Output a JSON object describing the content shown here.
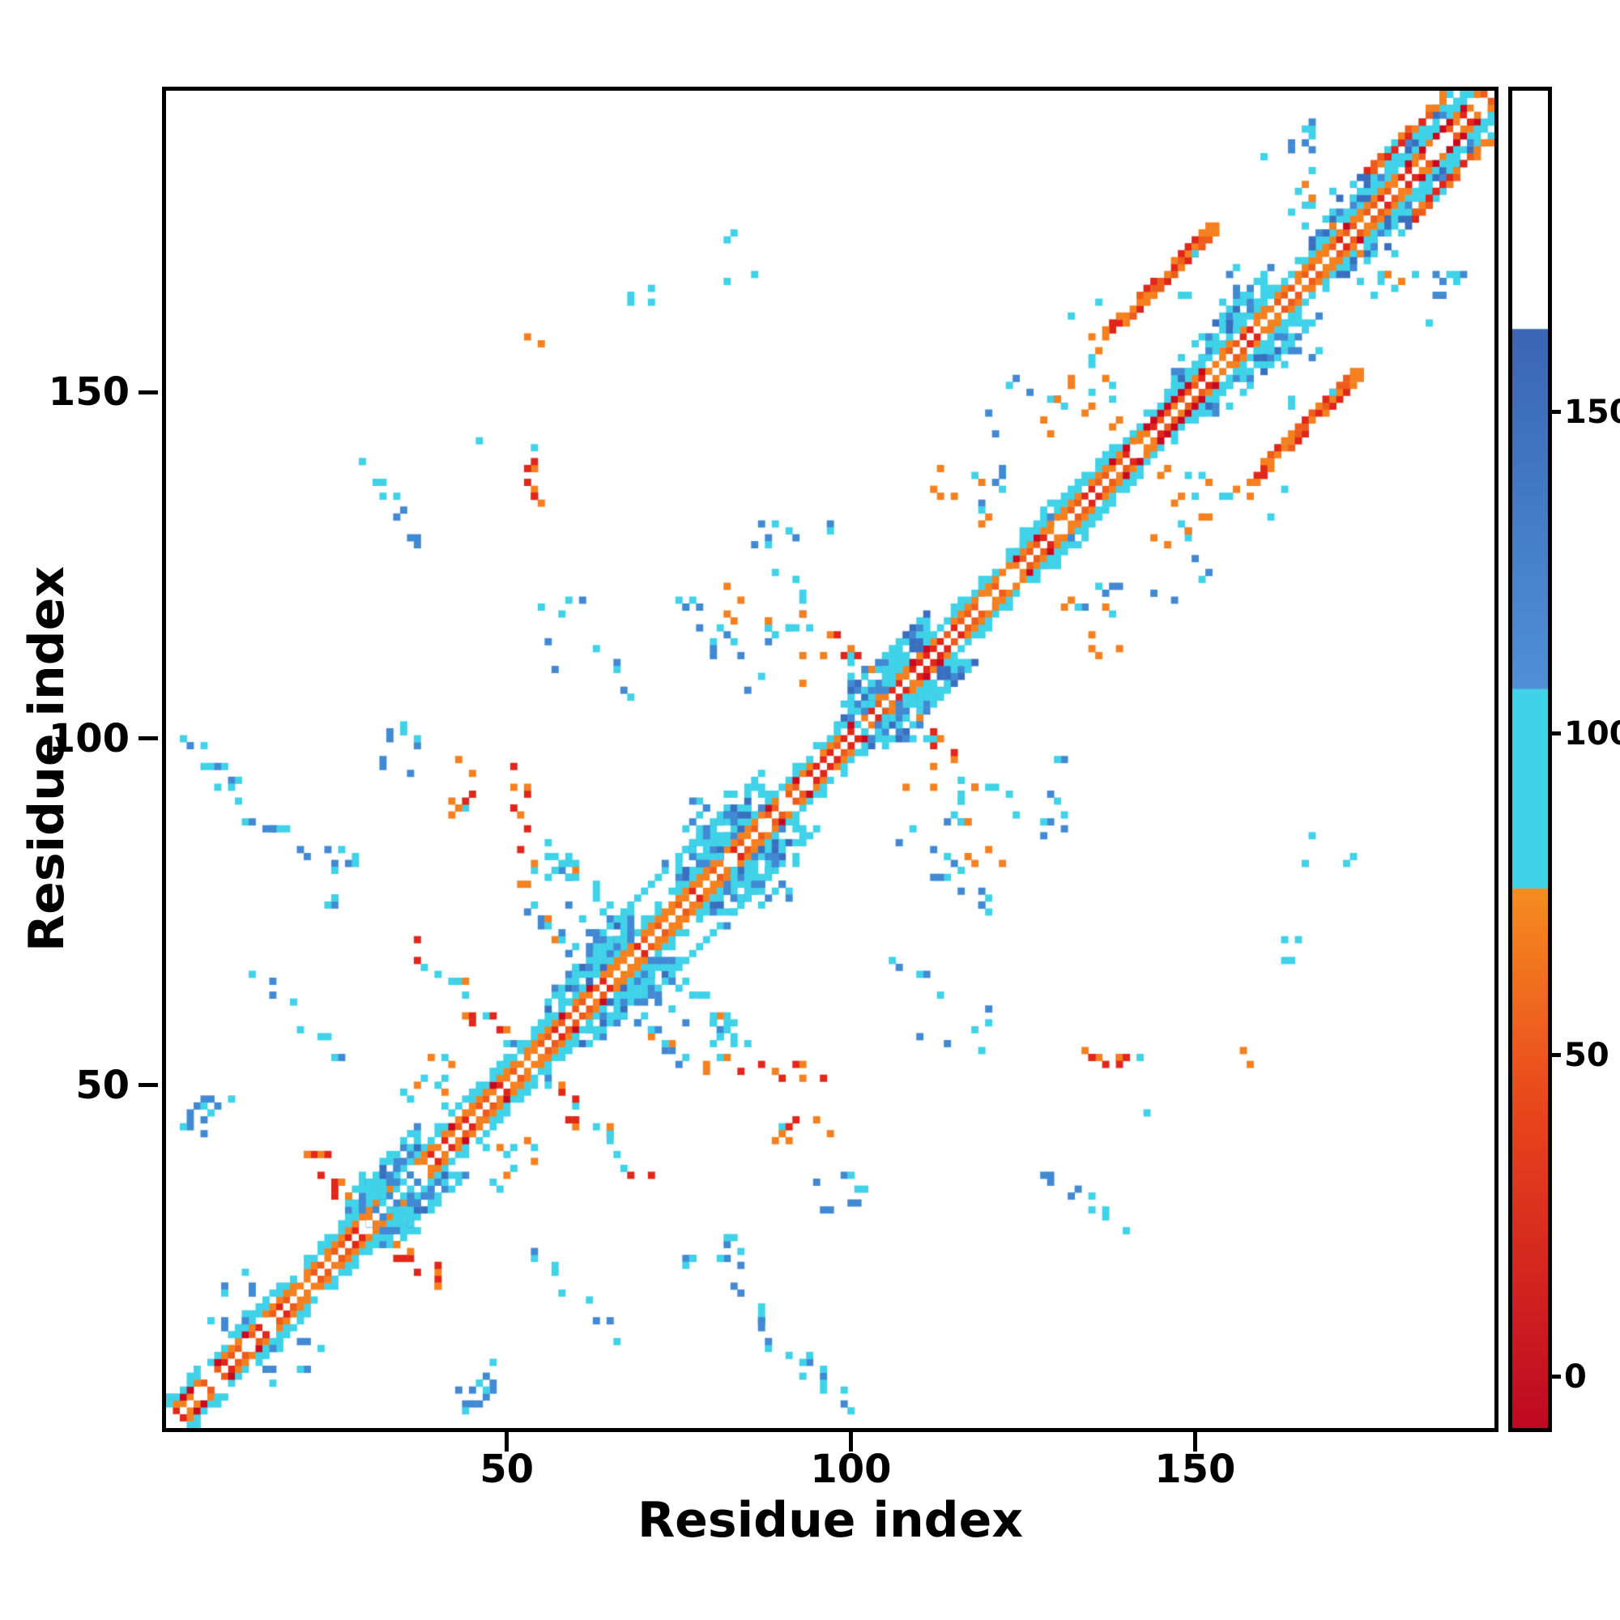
{
  "chart_data": {
    "type": "heatmap",
    "title": "",
    "xlabel": "Residue index",
    "ylabel": "Residue index",
    "x_range": [
      1,
      193
    ],
    "y_range": [
      1,
      193
    ],
    "x_ticks": [
      "50",
      "100",
      "150"
    ],
    "x_tick_values": [
      50,
      100,
      150
    ],
    "y_ticks": [
      "50",
      "100",
      "150"
    ],
    "y_tick_values": [
      50,
      100,
      150
    ],
    "grid": false,
    "background": "#ffffff",
    "legend_position": "colorbar-right",
    "palette": {
      "red": "#e2261a",
      "red2": "#c9081f",
      "orange": "#f5801f",
      "orange2": "#ee5c1c",
      "cyan": "#3fd2e8",
      "blue": "#4289d4",
      "blue2": "#3a6fc0",
      "white": "#ffffff",
      "axis": "#000000"
    },
    "colorbar": {
      "range": [
        -8,
        200
      ],
      "ticks": [
        "0",
        "50",
        "100",
        "150"
      ],
      "tick_values": [
        0,
        50,
        100,
        150
      ],
      "segments": [
        {
          "from": -8,
          "to": 40,
          "from_color": "#c00822",
          "to_color": "#e8431c"
        },
        {
          "from": 40,
          "to": 76,
          "from_color": "#e8431c",
          "to_color": "#f68d20"
        },
        {
          "from": 76,
          "to": 107,
          "from_color": "#3fd2e8",
          "to_color": "#3fd2e8"
        },
        {
          "from": 107,
          "to": 163,
          "from_color": "#4f90d8",
          "to_color": "#3a66b4"
        },
        {
          "from": 163,
          "to": 200,
          "from_color": "#ffffff",
          "to_color": "#ffffff"
        }
      ]
    },
    "contact_map": {
      "n_residues": 193,
      "seed": 7,
      "diagonal_band": {
        "inner_offsets": [
          1,
          2
        ],
        "outer_offsets": [
          3,
          4
        ],
        "inner_gap_p": 0.1,
        "outer_gap_p": 0.2,
        "outer_gap_p2": 0.45,
        "red_p": 0.18,
        "red_rich_p": 0.5,
        "blue_speck_p": 0.06,
        "inner_colors": [
          "orange",
          "orange2",
          "red"
        ],
        "outer_color": "cyan"
      },
      "red_segments": [
        [
          1,
          12
        ],
        [
          95,
          112
        ],
        [
          143,
          151
        ],
        [
          179,
          190
        ]
      ],
      "bulges": [
        {
          "center": 32,
          "length": 10,
          "half_width": 7,
          "blue_p": 0.3
        },
        {
          "center": 62,
          "length": 12,
          "half_width": 7,
          "blue_p": 0.3
        },
        {
          "center": 81,
          "length": 12,
          "half_width": 8,
          "blue_p": 0.25
        },
        {
          "center": 105,
          "length": 12,
          "half_width": 7,
          "blue_p": 0.3
        },
        {
          "center": 126,
          "length": 6,
          "half_width": 5,
          "blue_p": 0.15
        },
        {
          "center": 154,
          "length": 14,
          "half_width": 7,
          "blue_p": 0.3
        },
        {
          "center": 173,
          "length": 12,
          "half_width": 7,
          "blue_p": 0.25
        },
        {
          "center": 186,
          "length": 10,
          "half_width": 6,
          "blue_p": 0.2
        }
      ],
      "paradiags": [
        {
          "from": 62,
          "to": 80,
          "offset": 8,
          "colors": [
            "cyan",
            "cyan",
            "blue"
          ],
          "p": 0.8
        },
        {
          "from": 174,
          "to": 189,
          "offset": 6,
          "colors": [
            "orange",
            "orange2",
            "red"
          ],
          "p": 0.85
        }
      ],
      "diag_streaks": [
        {
          "x0": 138,
          "y0": 158,
          "len": 15,
          "thick": 3,
          "colors": [
            "red",
            "orange",
            "orange2"
          ],
          "p": 0.8
        }
      ],
      "clusters": [
        {
          "x": [
            3,
            12
          ],
          "y": [
            40,
            52
          ],
          "n": 9,
          "colors": [
            "cyan",
            "blue"
          ],
          "pattern": "scatter"
        },
        {
          "x": [
            3,
            16
          ],
          "y": [
            86,
            100
          ],
          "n": 13,
          "colors": [
            "blue",
            "cyan"
          ],
          "pattern": "antidiag"
        },
        {
          "x": [
            17,
            23
          ],
          "y": [
            82,
            90
          ],
          "n": 3,
          "colors": [
            "blue",
            "cyan"
          ],
          "pattern": "scatter"
        },
        {
          "x": [
            7,
            15
          ],
          "y": [
            14,
            23
          ],
          "n": 7,
          "colors": [
            "cyan",
            "blue"
          ],
          "pattern": "scatter"
        },
        {
          "x": [
            20,
            27
          ],
          "y": [
            33,
            41
          ],
          "n": 8,
          "colors": [
            "orange",
            "red"
          ],
          "pattern": "antidiag"
        },
        {
          "x": [
            29,
            37
          ],
          "y": [
            30,
            38
          ],
          "n": 12,
          "colors": [
            "blue",
            "cyan"
          ],
          "pattern": "blob"
        },
        {
          "x": [
            33,
            42
          ],
          "y": [
            46,
            56
          ],
          "n": 8,
          "colors": [
            "cyan",
            "orange"
          ],
          "pattern": "scatter"
        },
        {
          "x": [
            36,
            50
          ],
          "y": [
            56,
            70
          ],
          "n": 12,
          "colors": [
            "orange",
            "red",
            "cyan"
          ],
          "pattern": "antidiag"
        },
        {
          "x": [
            14,
            24
          ],
          "y": [
            55,
            67
          ],
          "n": 7,
          "colors": [
            "cyan",
            "blue"
          ],
          "pattern": "antidiag"
        },
        {
          "x": [
            20,
            30
          ],
          "y": [
            74,
            86
          ],
          "n": 7,
          "colors": [
            "cyan",
            "blue"
          ],
          "pattern": "scatter"
        },
        {
          "x": [
            31,
            40
          ],
          "y": [
            92,
            104
          ],
          "n": 6,
          "colors": [
            "cyan",
            "blue"
          ],
          "pattern": "scatter"
        },
        {
          "x": [
            29,
            38
          ],
          "y": [
            128,
            139
          ],
          "n": 8,
          "colors": [
            "cyan",
            "blue"
          ],
          "pattern": "antidiag"
        },
        {
          "x": [
            45,
            56
          ],
          "y": [
            130,
            143
          ],
          "n": 8,
          "colors": [
            "orange",
            "cyan",
            "red"
          ],
          "pattern": "scatter"
        },
        {
          "x": [
            52,
            61
          ],
          "y": [
            66,
            79
          ],
          "n": 12,
          "colors": [
            "cyan",
            "blue",
            "orange"
          ],
          "pattern": "antidiag"
        },
        {
          "x": [
            57,
            66
          ],
          "y": [
            70,
            82
          ],
          "n": 10,
          "colors": [
            "blue",
            "cyan"
          ],
          "pattern": "blob"
        },
        {
          "x": [
            76,
            84
          ],
          "y": [
            82,
            92
          ],
          "n": 12,
          "colors": [
            "blue",
            "cyan"
          ],
          "pattern": "blob"
        },
        {
          "x": [
            42,
            54
          ],
          "y": [
            84,
            97
          ],
          "n": 12,
          "colors": [
            "orange",
            "red",
            "cyan"
          ],
          "pattern": "scatter"
        },
        {
          "x": [
            53,
            60
          ],
          "y": [
            79,
            88
          ],
          "n": 8,
          "colors": [
            "orange",
            "cyan"
          ],
          "pattern": "scatter"
        },
        {
          "x": [
            84,
            96
          ],
          "y": [
            103,
            116
          ],
          "n": 10,
          "colors": [
            "cyan",
            "blue",
            "orange"
          ],
          "pattern": "scatter"
        },
        {
          "x": [
            86,
            98
          ],
          "y": [
            118,
            132
          ],
          "n": 7,
          "colors": [
            "cyan",
            "blue"
          ],
          "pattern": "scatter"
        },
        {
          "x": [
            98,
            106
          ],
          "y": [
            106,
            114
          ],
          "n": 10,
          "colors": [
            "orange",
            "red",
            "cyan"
          ],
          "pattern": "antidiag"
        },
        {
          "x": [
            100,
            110
          ],
          "y": [
            100,
            112
          ],
          "n": 10,
          "colors": [
            "blue",
            "cyan"
          ],
          "pattern": "blob"
        },
        {
          "x": [
            55,
            70
          ],
          "y": [
            106,
            122
          ],
          "n": 9,
          "colors": [
            "cyan",
            "blue"
          ],
          "pattern": "scatter"
        },
        {
          "x": [
            75,
            85
          ],
          "y": [
            112,
            124
          ],
          "n": 12,
          "colors": [
            "cyan",
            "orange",
            "blue"
          ],
          "pattern": "scatter"
        },
        {
          "x": [
            88,
            97
          ],
          "y": [
            115,
            126
          ],
          "n": 8,
          "colors": [
            "orange",
            "cyan"
          ],
          "pattern": "scatter"
        },
        {
          "x": [
            112,
            122
          ],
          "y": [
            130,
            142
          ],
          "n": 8,
          "colors": [
            "cyan",
            "blue",
            "orange"
          ],
          "pattern": "scatter"
        },
        {
          "x": [
            120,
            130
          ],
          "y": [
            143,
            152
          ],
          "n": 6,
          "colors": [
            "blue",
            "cyan"
          ],
          "pattern": "scatter"
        },
        {
          "x": [
            128,
            139
          ],
          "y": [
            142,
            154
          ],
          "n": 9,
          "colors": [
            "orange",
            "cyan"
          ],
          "pattern": "scatter"
        },
        {
          "x": [
            130,
            138
          ],
          "y": [
            154,
            163
          ],
          "n": 7,
          "colors": [
            "cyan",
            "orange"
          ],
          "pattern": "scatter"
        },
        {
          "x": [
            148,
            158
          ],
          "y": [
            160,
            172
          ],
          "n": 8,
          "colors": [
            "cyan",
            "blue"
          ],
          "pattern": "scatter"
        },
        {
          "x": [
            160,
            172
          ],
          "y": [
            178,
            190
          ],
          "n": 8,
          "colors": [
            "cyan",
            "blue"
          ],
          "pattern": "scatter"
        },
        {
          "x": [
            163,
            172
          ],
          "y": [
            170,
            180
          ],
          "n": 8,
          "colors": [
            "orange",
            "cyan"
          ],
          "pattern": "scatter"
        },
        {
          "x": [
            52,
            56
          ],
          "y": [
            157,
            163
          ],
          "n": 2,
          "colors": [
            "orange"
          ],
          "pattern": "scatter"
        },
        {
          "x": [
            66,
            73
          ],
          "y": [
            162,
            168
          ],
          "n": 3,
          "colors": [
            "cyan"
          ],
          "pattern": "scatter"
        },
        {
          "x": [
            79,
            86
          ],
          "y": [
            166,
            173
          ],
          "n": 3,
          "colors": [
            "cyan"
          ],
          "pattern": "scatter"
        }
      ]
    }
  }
}
